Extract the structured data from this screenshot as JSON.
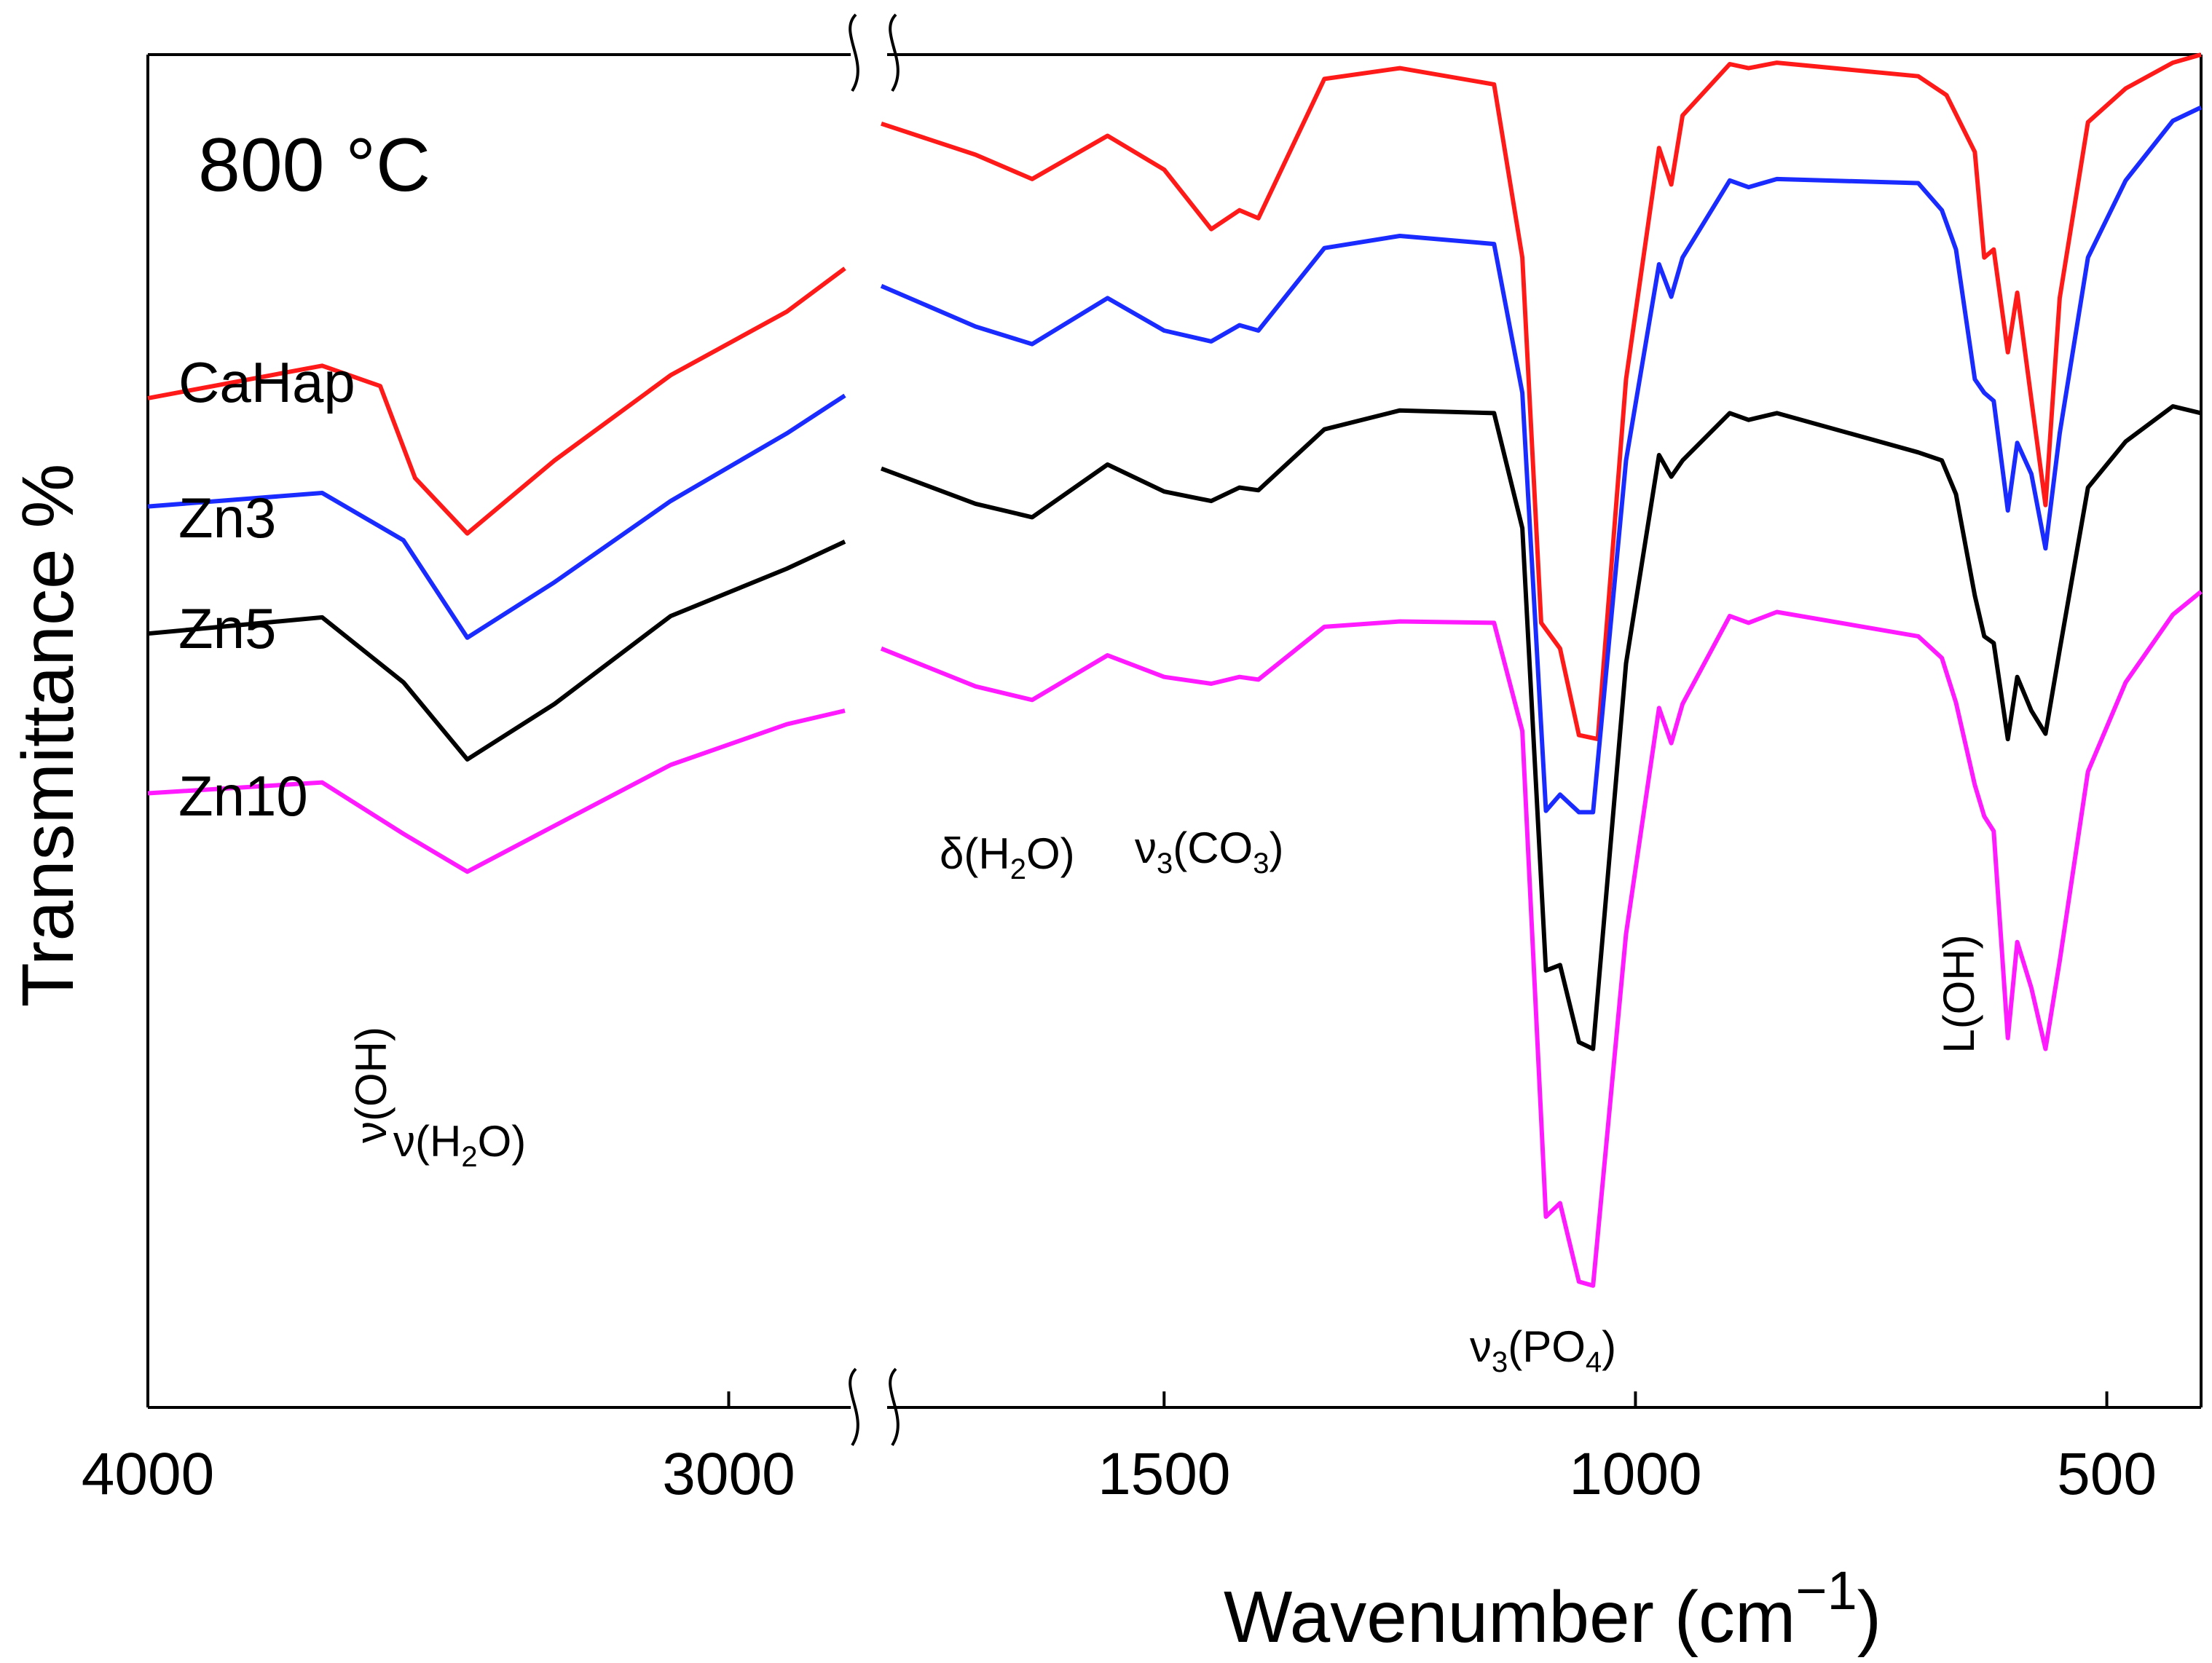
{
  "chart_data": {
    "type": "line",
    "title": "800 °C",
    "ylabel": "Transmittance %",
    "xlabel": "Wavenumber (cm",
    "xlabel_sup": "−1",
    "x_reversed": true,
    "broken_axis": true,
    "segments": [
      {
        "xlim": [
          4000,
          2800
        ],
        "ticks": [
          {
            "value": 4000,
            "label": "4000"
          },
          {
            "value": 3000,
            "label": "3000"
          }
        ]
      },
      {
        "xlim": [
          1800,
          400
        ],
        "ticks": [
          {
            "value": 1500,
            "label": "1500"
          },
          {
            "value": 1000,
            "label": "1000"
          },
          {
            "value": 500,
            "label": "500"
          }
        ]
      }
    ],
    "ylim": [
      0,
      100
    ],
    "y_ticks_shown": false,
    "grid": false,
    "legend": "inline labels at left",
    "series": [
      {
        "name": "CaHap",
        "color": "#ff1a1a",
        "points": [
          [
            4000,
            74.6
          ],
          [
            3700,
            77
          ],
          [
            3600,
            75.5
          ],
          [
            3540,
            68.7
          ],
          [
            3450,
            64.6
          ],
          [
            3300,
            70
          ],
          [
            3100,
            76.3
          ],
          [
            2900,
            81
          ],
          [
            2800,
            84.2
          ],
          [
            1800,
            94.9
          ],
          [
            1700,
            92.6
          ],
          [
            1640,
            90.8
          ],
          [
            1560,
            94
          ],
          [
            1500,
            91.5
          ],
          [
            1450,
            87.1
          ],
          [
            1420,
            88.5
          ],
          [
            1400,
            87.9
          ],
          [
            1330,
            98.2
          ],
          [
            1250,
            99
          ],
          [
            1150,
            97.8
          ],
          [
            1120,
            85
          ],
          [
            1100,
            58
          ],
          [
            1080,
            56.1
          ],
          [
            1060,
            49.7
          ],
          [
            1040,
            49.4
          ],
          [
            1010,
            76
          ],
          [
            975,
            93.1
          ],
          [
            962,
            90.4
          ],
          [
            950,
            95.5
          ],
          [
            900,
            99.3
          ],
          [
            880,
            99
          ],
          [
            850,
            99.4
          ],
          [
            700,
            98.4
          ],
          [
            670,
            97
          ],
          [
            640,
            92.8
          ],
          [
            630,
            85
          ],
          [
            620,
            85.6
          ],
          [
            605,
            78
          ],
          [
            595,
            82.4
          ],
          [
            580,
            74.5
          ],
          [
            565,
            66.7
          ],
          [
            550,
            82
          ],
          [
            520,
            95
          ],
          [
            480,
            97.5
          ],
          [
            430,
            99.4
          ],
          [
            400,
            100
          ]
        ]
      },
      {
        "name": "Zn3",
        "color": "#1a2bff",
        "points": [
          [
            4000,
            66.6
          ],
          [
            3700,
            67.6
          ],
          [
            3560,
            64.1
          ],
          [
            3450,
            56.9
          ],
          [
            3300,
            61
          ],
          [
            3100,
            67
          ],
          [
            2900,
            72
          ],
          [
            2800,
            74.8
          ],
          [
            1800,
            82.9
          ],
          [
            1700,
            79.9
          ],
          [
            1640,
            78.6
          ],
          [
            1560,
            82
          ],
          [
            1500,
            79.6
          ],
          [
            1450,
            78.8
          ],
          [
            1420,
            80
          ],
          [
            1400,
            79.6
          ],
          [
            1330,
            85.7
          ],
          [
            1250,
            86.6
          ],
          [
            1150,
            86
          ],
          [
            1120,
            75
          ],
          [
            1095,
            44.1
          ],
          [
            1080,
            45.3
          ],
          [
            1060,
            44
          ],
          [
            1045,
            44
          ],
          [
            1010,
            70
          ],
          [
            975,
            84.5
          ],
          [
            962,
            82.1
          ],
          [
            950,
            85
          ],
          [
            900,
            90.7
          ],
          [
            880,
            90.2
          ],
          [
            850,
            90.8
          ],
          [
            700,
            90.5
          ],
          [
            675,
            88.5
          ],
          [
            660,
            85.6
          ],
          [
            640,
            76
          ],
          [
            630,
            75
          ],
          [
            620,
            74.4
          ],
          [
            605,
            66.3
          ],
          [
            595,
            71.3
          ],
          [
            580,
            69
          ],
          [
            565,
            63.5
          ],
          [
            550,
            72
          ],
          [
            520,
            85
          ],
          [
            480,
            90.7
          ],
          [
            430,
            95.1
          ],
          [
            400,
            96.1
          ]
        ]
      },
      {
        "name": "Zn5",
        "color": "#000000",
        "points": [
          [
            4000,
            57.2
          ],
          [
            3700,
            58.4
          ],
          [
            3560,
            53.6
          ],
          [
            3450,
            47.9
          ],
          [
            3300,
            52
          ],
          [
            3100,
            58.5
          ],
          [
            2900,
            62
          ],
          [
            2800,
            64
          ],
          [
            1800,
            69.4
          ],
          [
            1700,
            66.8
          ],
          [
            1640,
            65.8
          ],
          [
            1560,
            69.7
          ],
          [
            1500,
            67.7
          ],
          [
            1450,
            67
          ],
          [
            1420,
            68
          ],
          [
            1400,
            67.8
          ],
          [
            1330,
            72.3
          ],
          [
            1250,
            73.7
          ],
          [
            1150,
            73.5
          ],
          [
            1120,
            65
          ],
          [
            1095,
            32.3
          ],
          [
            1080,
            32.7
          ],
          [
            1060,
            27
          ],
          [
            1045,
            26.5
          ],
          [
            1010,
            55
          ],
          [
            975,
            70.4
          ],
          [
            962,
            68.8
          ],
          [
            950,
            70
          ],
          [
            900,
            73.5
          ],
          [
            880,
            73
          ],
          [
            850,
            73.5
          ],
          [
            700,
            70.6
          ],
          [
            675,
            70
          ],
          [
            660,
            67.5
          ],
          [
            640,
            60
          ],
          [
            630,
            57
          ],
          [
            620,
            56.5
          ],
          [
            605,
            49.4
          ],
          [
            595,
            54
          ],
          [
            580,
            51.5
          ],
          [
            565,
            49.8
          ],
          [
            550,
            56
          ],
          [
            520,
            68
          ],
          [
            480,
            71.4
          ],
          [
            430,
            74
          ],
          [
            400,
            73.5
          ]
        ]
      },
      {
        "name": "Zn10",
        "color": "#ff1aff",
        "points": [
          [
            4000,
            45.4
          ],
          [
            3700,
            46.2
          ],
          [
            3560,
            42.4
          ],
          [
            3450,
            39.6
          ],
          [
            3300,
            43
          ],
          [
            3100,
            47.5
          ],
          [
            2900,
            50.5
          ],
          [
            2800,
            51.5
          ],
          [
            1800,
            56.1
          ],
          [
            1700,
            53.3
          ],
          [
            1640,
            52.3
          ],
          [
            1560,
            55.6
          ],
          [
            1500,
            54
          ],
          [
            1450,
            53.5
          ],
          [
            1420,
            54
          ],
          [
            1400,
            53.8
          ],
          [
            1330,
            57.7
          ],
          [
            1250,
            58.1
          ],
          [
            1150,
            58
          ],
          [
            1120,
            50
          ],
          [
            1095,
            14.1
          ],
          [
            1080,
            15.1
          ],
          [
            1060,
            9.3
          ],
          [
            1045,
            9
          ],
          [
            1010,
            35
          ],
          [
            975,
            51.7
          ],
          [
            962,
            49.1
          ],
          [
            950,
            52
          ],
          [
            900,
            58.5
          ],
          [
            880,
            58
          ],
          [
            850,
            58.8
          ],
          [
            700,
            57
          ],
          [
            675,
            55.4
          ],
          [
            660,
            52.1
          ],
          [
            640,
            46
          ],
          [
            630,
            43.7
          ],
          [
            620,
            42.6
          ],
          [
            605,
            27.3
          ],
          [
            595,
            34.4
          ],
          [
            580,
            31
          ],
          [
            565,
            26.5
          ],
          [
            550,
            33
          ],
          [
            520,
            47
          ],
          [
            480,
            53.6
          ],
          [
            430,
            58.6
          ],
          [
            400,
            60.3
          ]
        ]
      }
    ],
    "annotations": {
      "nu_oh": "ν(OH)",
      "nu_h2o": "ν(H",
      "delta_h2o": "δ(H",
      "nu3_co3": "ν",
      "co3_text": "(CO",
      "nu3_po4": "ν",
      "po4_text": "(PO",
      "l_oh": "L(OH)",
      "sub_2": "2",
      "sub_3": "3",
      "sub_4": "4",
      "o_close": "O)",
      "paren_close": ")"
    }
  }
}
